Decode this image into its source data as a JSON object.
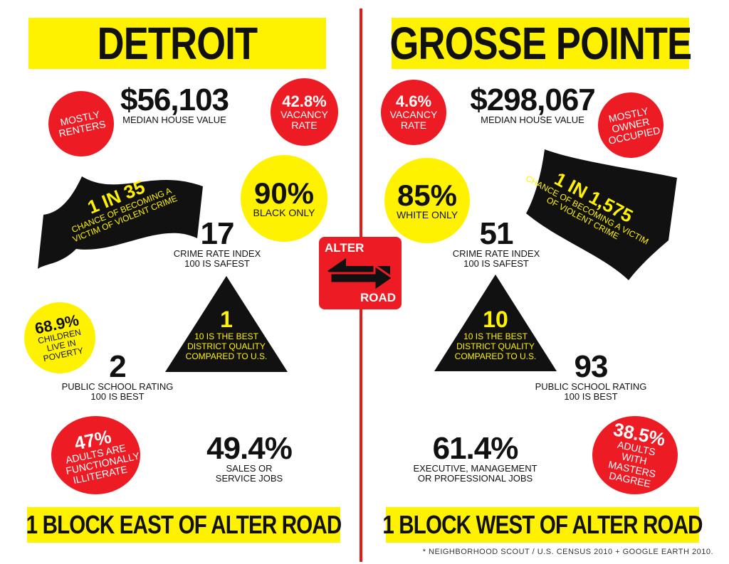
{
  "left": {
    "title": "DETROIT",
    "footer": "1 BLOCK EAST OF ALTER ROAD",
    "tenure": "MOSTLY RENTERS",
    "median_value": "$56,103",
    "median_label": "MEDIAN HOUSE VALUE",
    "vacancy_pct": "42.8%",
    "vacancy_label": "VACANCY RATE",
    "crime_ratio": "1 IN 35",
    "crime_ratio_label": "CHANCE OF BECOMING A VICTIM OF VIOLENT CRIME",
    "race_pct": "90%",
    "race_label": "BLACK ONLY",
    "crime_index": "17",
    "crime_index_label1": "CRIME RATE INDEX",
    "crime_index_label2": "100 IS SAFEST",
    "poverty_pct": "68.9%",
    "poverty_label": "CHILDREN LIVE IN POVERTY",
    "district_quality": "1",
    "district_label": "10 IS THE BEST DISTRICT QUALITY COMPARED TO U.S.",
    "school_rating": "2",
    "school_label1": "PUBLIC SCHOOL RATING",
    "school_label2": "100 IS BEST",
    "literacy_pct": "47%",
    "literacy_label": "ADULTS ARE FUNCTIONALLY ILLITERATE",
    "jobs_pct": "49.4%",
    "jobs_label1": "SALES OR",
    "jobs_label2": "SERVICE JOBS"
  },
  "right": {
    "title": "GROSSE POINTE",
    "footer": "1 BLOCK WEST OF ALTER ROAD",
    "tenure": "MOSTLY OWNER OCCUPIED",
    "median_value": "$298,067",
    "median_label": "MEDIAN HOUSE VALUE",
    "vacancy_pct": "4.6%",
    "vacancy_label": "VACANCY RATE",
    "crime_ratio": "1 IN 1,575",
    "crime_ratio_label": "CHANCE OF BECOMING A VICTIM OF VIOLENT CRIME",
    "race_pct": "85%",
    "race_label": "WHITE ONLY",
    "crime_index": "51",
    "crime_index_label1": "CRIME RATE INDEX",
    "crime_index_label2": "100 IS SAFEST",
    "district_quality": "10",
    "district_label": "10 IS THE BEST DISTRICT QUALITY COMPARED TO U.S.",
    "school_rating": "93",
    "school_label1": "PUBLIC SCHOOL RATING",
    "school_label2": "100 IS BEST",
    "masters_pct": "38.5%",
    "masters_label": "ADULTS WITH MASTERS DAGREE",
    "jobs_pct": "61.4%",
    "jobs_label1": "EXECUTIVE, MANAGEMENT",
    "jobs_label2": "OR PROFESSIONAL JOBS"
  },
  "sign": {
    "top": "ALTER",
    "bottom": "ROAD",
    "icon": "two-way-arrow-icon"
  },
  "source_note": "* NEIGHBORHOOD SCOUT / U.S. CENSUS 2010 + GOOGLE EARTH 2010.",
  "colors": {
    "yellow": "#fff200",
    "red": "#ed1c24",
    "black": "#111111"
  }
}
